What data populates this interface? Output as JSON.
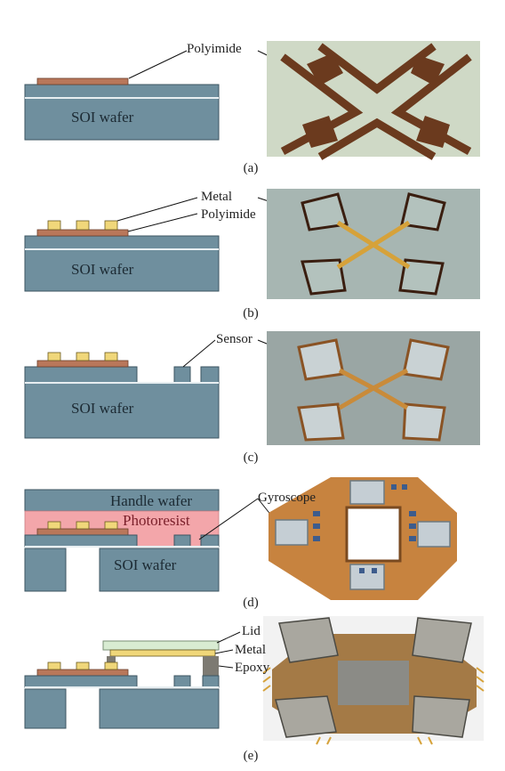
{
  "panels": [
    {
      "id": "a",
      "caption": "(a)",
      "labels": [
        "Polyimide"
      ],
      "wafer_text": "SOI wafer"
    },
    {
      "id": "b",
      "caption": "(b)",
      "labels": [
        "Metal",
        "Polyimide"
      ],
      "wafer_text": "SOI wafer"
    },
    {
      "id": "c",
      "caption": "(c)",
      "labels": [
        "Sensor"
      ],
      "wafer_text": "SOI wafer"
    },
    {
      "id": "d",
      "caption": "(d)",
      "labels": [
        "Gyroscope"
      ],
      "wafer_text": "SOI wafer",
      "handle_text": "Handle wafer",
      "photoresist_text": "Photoresist"
    },
    {
      "id": "e",
      "caption": "(e)",
      "labels": [
        "Lid",
        "Metal",
        "Epoxy"
      ]
    }
  ],
  "colors": {
    "wafer": "#6f8f9e",
    "wafer_stroke": "#3c5662",
    "polyimide": "#b9775a",
    "metal": "#f0d77a",
    "photoresist": "#f3a6aa",
    "lid": "#d8ecd2",
    "epoxy": "#7d7a72",
    "photo_bg": "#c9d4d0",
    "trace": "#6b3a1e",
    "gold": "#d6a23a"
  }
}
